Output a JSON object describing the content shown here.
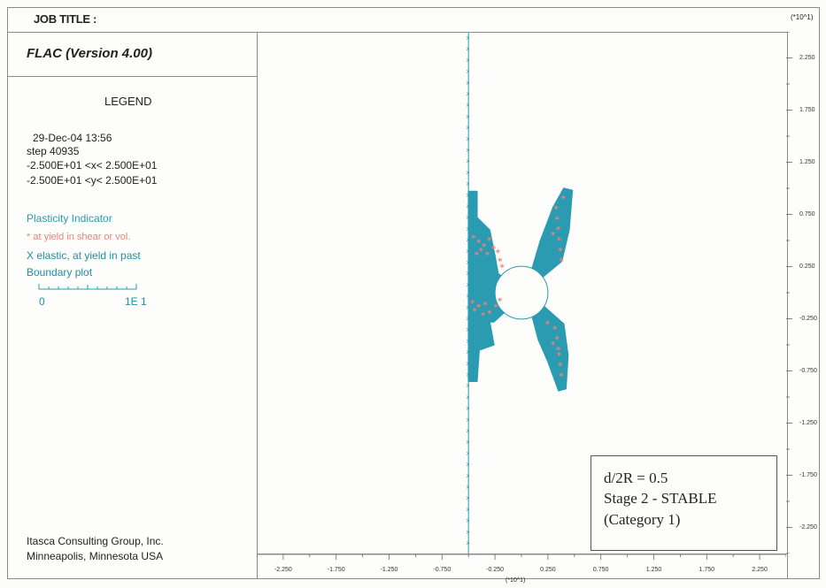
{
  "header": {
    "job_title": "JOB TITLE :",
    "units_label": "(*10^1)"
  },
  "legend_panel": {
    "program": "FLAC (Version 4.00)",
    "legend_title": "LEGEND",
    "date_time": "29-Dec-04 13:56",
    "step": "step 40935",
    "x_range": "-2.500E+01 <x< 2.500E+01",
    "y_range": "-2.500E+01 <y< 2.500E+01",
    "plasticity_title": "Plasticity Indicator",
    "yield_now": "* at yield in shear or vol.",
    "elastic_past": "X elastic, at yield in past",
    "boundary_plot": "Boundary plot",
    "scale_min": "0",
    "scale_max": "1E 1",
    "company": "Itasca Consulting Group, Inc.",
    "location": "Minneapolis, Minnesota USA"
  },
  "annotation": {
    "line1": "d/2R = 0.5",
    "line2": "Stage 2 - STABLE",
    "line3": "(Category 1)"
  },
  "colors": {
    "elastic_past": "#2a9bb0",
    "yield_now": "#e8857a"
  },
  "chart_data": {
    "type": "scatter",
    "title": "",
    "x_units_label": "(*10^1)",
    "y_units_label": "(*10^1)",
    "xlim": [
      -2.5,
      2.5
    ],
    "ylim": [
      -2.5,
      2.5
    ],
    "x_ticks": [
      "-2.250",
      "-1.750",
      "-1.250",
      "-0.750",
      "-0.250",
      "0.250",
      "0.750",
      "1.250",
      "1.750",
      "2.250"
    ],
    "y_ticks": [
      "2.250",
      "1.750",
      "1.250",
      "0.750",
      "0.250",
      "-0.250",
      "-0.750",
      "-1.250",
      "-1.750",
      "-2.250"
    ],
    "x_tick_values": [
      -2.25,
      -1.75,
      -1.25,
      -0.75,
      -0.25,
      0.25,
      0.75,
      1.25,
      1.75,
      2.25
    ],
    "y_tick_values": [
      2.25,
      1.75,
      1.25,
      0.75,
      0.25,
      -0.25,
      -0.75,
      -1.25,
      -1.75,
      -2.25
    ],
    "boundary": {
      "left_x": -0.5,
      "opening_center": [
        0.0,
        0.0
      ],
      "opening_radius": 0.25
    },
    "series": [
      {
        "symbol": "X",
        "label": "X elastic, at yield in past",
        "regions": [
          {
            "name": "left-upper-block",
            "polygon": [
              [
                -0.5,
                0.97
              ],
              [
                -0.42,
                0.97
              ],
              [
                -0.42,
                0.72
              ],
              [
                -0.3,
                0.6
              ],
              [
                -0.25,
                0.35
              ],
              [
                -0.5,
                0.35
              ]
            ]
          },
          {
            "name": "left-middle-wedge",
            "polygon": [
              [
                -0.5,
                0.35
              ],
              [
                -0.25,
                0.35
              ],
              [
                -0.22,
                0.18
              ],
              [
                -0.1,
                0.1
              ],
              [
                -0.05,
                -0.05
              ],
              [
                -0.12,
                -0.15
              ],
              [
                -0.26,
                -0.28
              ],
              [
                -0.5,
                -0.28
              ]
            ]
          },
          {
            "name": "left-lower-block",
            "polygon": [
              [
                -0.5,
                -0.28
              ],
              [
                -0.3,
                -0.28
              ],
              [
                -0.26,
                -0.5
              ],
              [
                -0.4,
                -0.55
              ],
              [
                -0.42,
                -0.85
              ],
              [
                -0.5,
                -0.85
              ]
            ]
          },
          {
            "name": "right-upper-arm",
            "polygon": [
              [
                0.1,
                0.23
              ],
              [
                0.18,
                0.5
              ],
              [
                0.3,
                0.82
              ],
              [
                0.4,
                1.0
              ],
              [
                0.48,
                0.98
              ],
              [
                0.45,
                0.6
              ],
              [
                0.38,
                0.3
              ],
              [
                0.2,
                0.15
              ]
            ]
          },
          {
            "name": "right-lower-arm",
            "polygon": [
              [
                0.1,
                -0.22
              ],
              [
                0.2,
                -0.12
              ],
              [
                0.4,
                -0.3
              ],
              [
                0.44,
                -0.6
              ],
              [
                0.42,
                -0.92
              ],
              [
                0.35,
                -0.94
              ],
              [
                0.25,
                -0.66
              ],
              [
                0.16,
                -0.45
              ]
            ]
          }
        ]
      },
      {
        "symbol": "*",
        "label": "* at yield in shear or vol.",
        "points": [
          [
            -0.45,
            0.52
          ],
          [
            -0.4,
            0.48
          ],
          [
            -0.35,
            0.44
          ],
          [
            -0.3,
            0.5
          ],
          [
            -0.26,
            0.42
          ],
          [
            -0.22,
            0.38
          ],
          [
            -0.2,
            0.3
          ],
          [
            -0.38,
            0.4
          ],
          [
            -0.42,
            0.36
          ],
          [
            -0.32,
            0.36
          ],
          [
            -0.18,
            0.24
          ],
          [
            -0.46,
            -0.1
          ],
          [
            -0.4,
            -0.14
          ],
          [
            -0.34,
            -0.12
          ],
          [
            -0.3,
            -0.2
          ],
          [
            -0.24,
            -0.14
          ],
          [
            -0.2,
            -0.08
          ],
          [
            -0.44,
            -0.18
          ],
          [
            -0.36,
            -0.22
          ],
          [
            0.33,
            0.8
          ],
          [
            0.34,
            0.7
          ],
          [
            0.35,
            0.6
          ],
          [
            0.36,
            0.5
          ],
          [
            0.37,
            0.4
          ],
          [
            0.38,
            0.3
          ],
          [
            0.4,
            0.9
          ],
          [
            0.3,
            0.55
          ],
          [
            0.32,
            -0.35
          ],
          [
            0.34,
            -0.45
          ],
          [
            0.35,
            -0.55
          ],
          [
            0.36,
            -0.6
          ],
          [
            0.37,
            -0.7
          ],
          [
            0.38,
            -0.8
          ],
          [
            0.3,
            -0.5
          ],
          [
            0.25,
            -0.3
          ]
        ]
      }
    ]
  }
}
